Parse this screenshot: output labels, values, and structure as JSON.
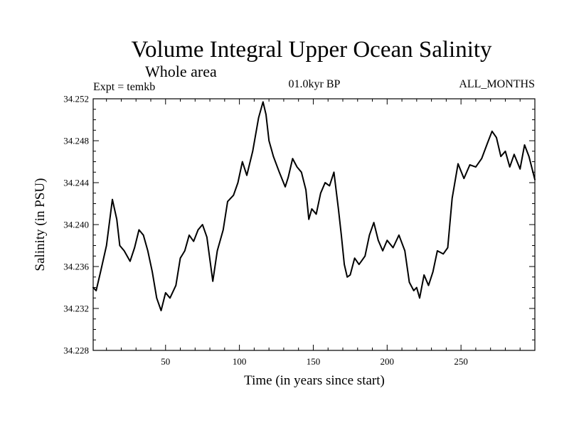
{
  "chart_data": {
    "type": "line",
    "title": "Volume Integral Upper Ocean Salinity",
    "subtitle": "Whole area",
    "left_note": "Expt = temkb",
    "center_note": "01.0kyr BP",
    "right_note": "ALL_MONTHS",
    "xlabel": "Time (in years since start)",
    "ylabel": "Salinity (in PSU)",
    "xlim": [
      1,
      300
    ],
    "ylim": [
      34.228,
      34.252
    ],
    "x_ticks": [
      50,
      100,
      150,
      200,
      250
    ],
    "y_ticks": [
      "34.228",
      "34.232",
      "34.236",
      "34.240",
      "34.244",
      "34.248",
      "34.252"
    ],
    "grid": false,
    "series": [
      {
        "name": "salinity",
        "color": "#000000",
        "x": [
          1,
          3,
          6,
          10,
          14,
          17,
          19,
          22,
          26,
          29,
          32,
          35,
          38,
          41,
          44,
          47,
          50,
          53,
          57,
          60,
          63,
          66,
          69,
          72,
          75,
          78,
          82,
          85,
          89,
          92,
          96,
          99,
          102,
          105,
          109,
          113,
          116,
          118,
          120,
          123,
          127,
          131,
          133,
          136,
          139,
          142,
          145,
          147,
          149,
          152,
          155,
          158,
          161,
          164,
          167,
          169,
          171,
          173,
          175,
          178,
          181,
          185,
          188,
          191,
          194,
          197,
          200,
          204,
          208,
          212,
          215,
          218,
          220,
          222,
          225,
          228,
          231,
          234,
          238,
          241,
          244,
          248,
          252,
          256,
          260,
          264,
          268,
          271,
          274,
          277,
          280,
          283,
          286,
          290,
          293,
          296,
          300
        ],
        "y": [
          34.234,
          34.2337,
          34.2355,
          34.238,
          34.2424,
          34.2405,
          34.238,
          34.2375,
          34.2365,
          34.2378,
          34.2395,
          34.239,
          34.2375,
          34.2355,
          34.233,
          34.2318,
          34.2335,
          34.233,
          34.2342,
          34.2368,
          34.2375,
          34.239,
          34.2384,
          34.2395,
          34.24,
          34.2388,
          34.2346,
          34.2375,
          34.2395,
          34.2422,
          34.2428,
          34.244,
          34.246,
          34.2447,
          34.247,
          34.2502,
          34.2517,
          34.2505,
          34.248,
          34.2465,
          34.245,
          34.2436,
          34.2445,
          34.2463,
          34.2455,
          34.245,
          34.2433,
          34.2405,
          34.2415,
          34.241,
          34.243,
          34.244,
          34.2437,
          34.245,
          34.2415,
          34.239,
          34.2362,
          34.235,
          34.2352,
          34.2368,
          34.2362,
          34.237,
          34.239,
          34.2402,
          34.2385,
          34.2375,
          34.2385,
          34.2378,
          34.239,
          34.2375,
          34.2345,
          34.2337,
          34.234,
          34.233,
          34.2352,
          34.2342,
          34.2355,
          34.2375,
          34.2372,
          34.2378,
          34.2425,
          34.2458,
          34.2444,
          34.2457,
          34.2455,
          34.2463,
          34.2478,
          34.2489,
          34.2483,
          34.2465,
          34.247,
          34.2455,
          34.2467,
          34.2453,
          34.2476,
          34.2465,
          34.2443
        ]
      }
    ]
  }
}
